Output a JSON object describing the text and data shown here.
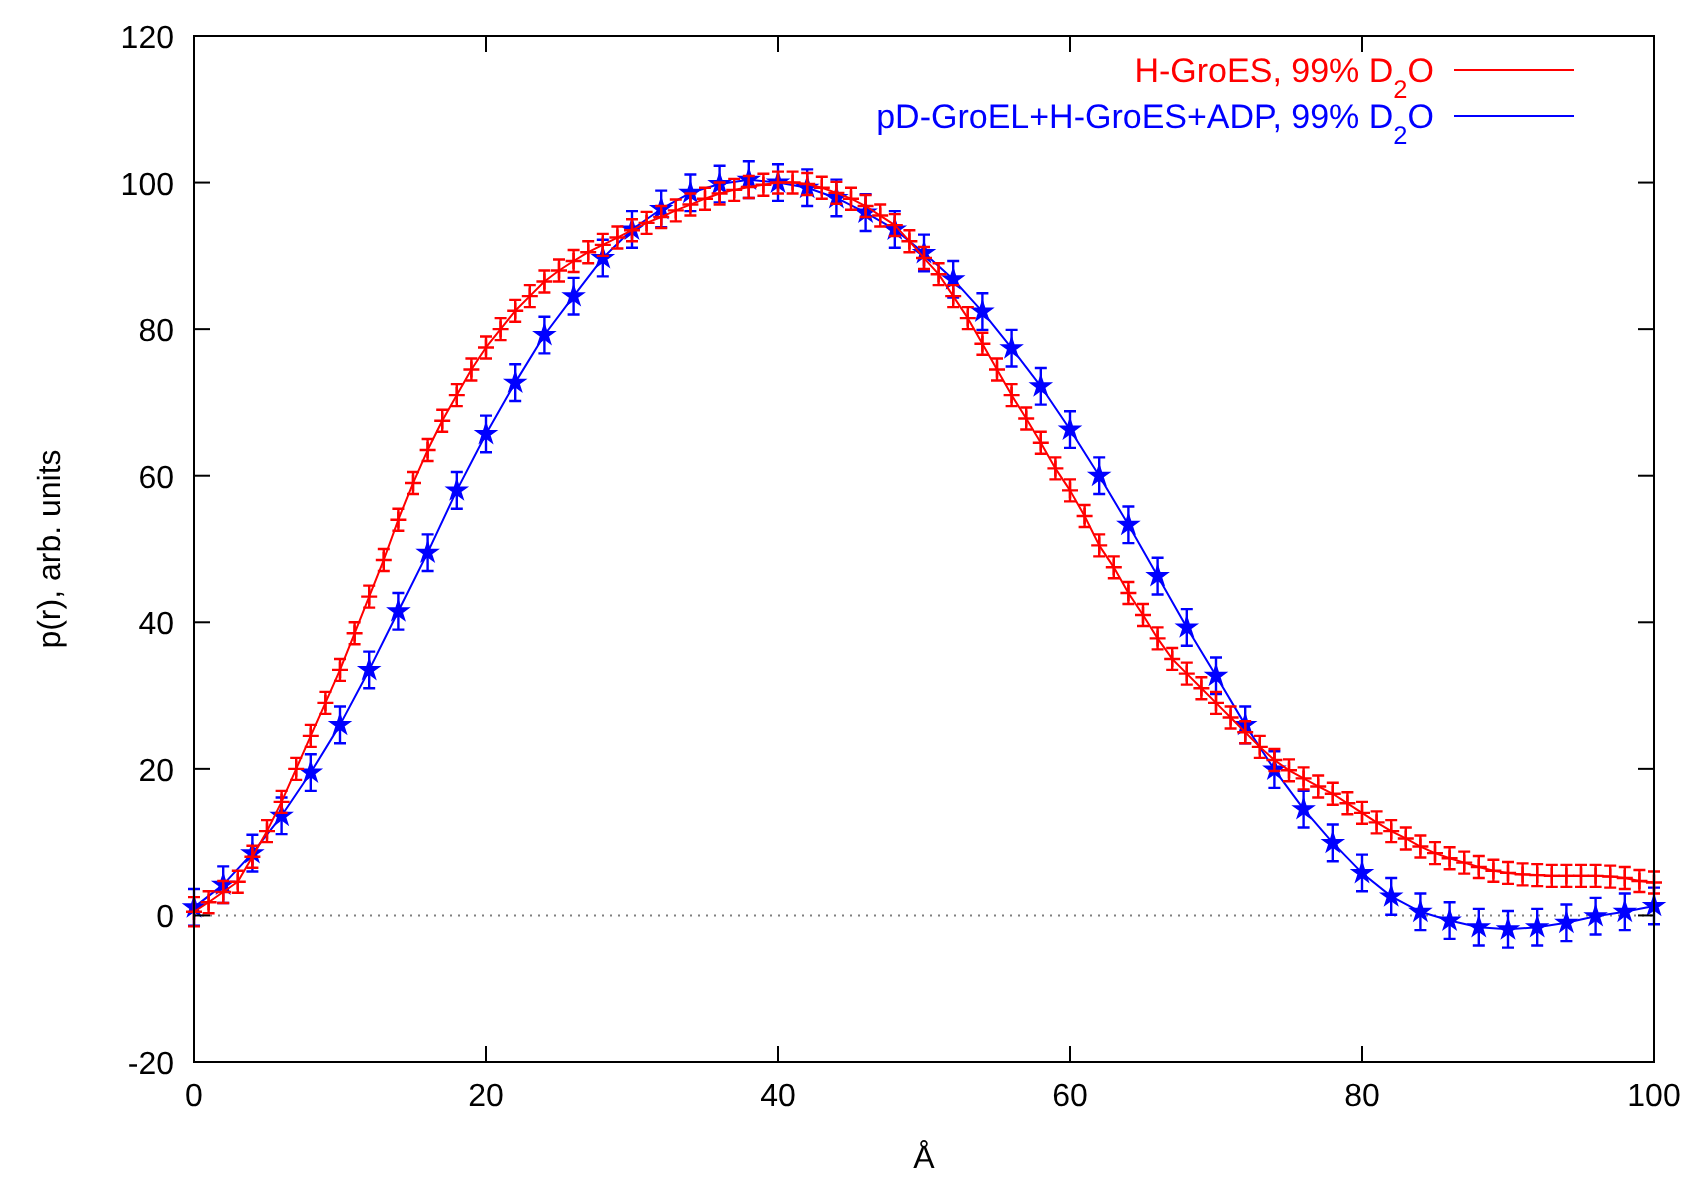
{
  "chart_data": {
    "type": "line",
    "xlabel": "Å",
    "ylabel": "p(r), arb. units",
    "xlim": [
      0,
      100
    ],
    "xticks": [
      0,
      20,
      40,
      60,
      80,
      100
    ],
    "ylim": [
      -20,
      120
    ],
    "yticks": [
      -20,
      0,
      20,
      40,
      60,
      80,
      100,
      120
    ],
    "grid": false,
    "legend": "top right",
    "line_style": "solid",
    "ref_lines": [
      {
        "axis": "y",
        "value": 0,
        "color": "#808080",
        "line_style": "dotted"
      }
    ],
    "series": [
      {
        "name": "H-GroES, 99% D$_{2}$O",
        "color": "#ff0000",
        "marker": "cross",
        "x": [
          0,
          1,
          2,
          3,
          4,
          5,
          6,
          7,
          8,
          9,
          10,
          11,
          12,
          13,
          14,
          15,
          16,
          17,
          18,
          19,
          20,
          21,
          22,
          23,
          24,
          25,
          26,
          27,
          28,
          29,
          30,
          31,
          32,
          33,
          34,
          35,
          36,
          37,
          38,
          39,
          40,
          41,
          42,
          43,
          44,
          45,
          46,
          47,
          48,
          49,
          50,
          51,
          52,
          53,
          54,
          55,
          56,
          57,
          58,
          59,
          60,
          61,
          62,
          63,
          64,
          65,
          66,
          67,
          68,
          69,
          70,
          71,
          72,
          73,
          74,
          75,
          76,
          77,
          78,
          79,
          80,
          81,
          82,
          83,
          84,
          85,
          86,
          87,
          88,
          89,
          90,
          91,
          92,
          93,
          94,
          95,
          96,
          97,
          98,
          99,
          100
        ],
        "values": [
          0.5,
          1.8,
          3.2,
          4.6,
          8,
          11.5,
          15.5,
          20,
          24.5,
          29,
          33.5,
          38.5,
          43.5,
          48.5,
          54,
          59,
          63.5,
          67.5,
          71,
          74.5,
          77.5,
          80,
          82.5,
          84.5,
          86.5,
          88,
          89.3,
          90.5,
          91.5,
          92.5,
          93.5,
          94.5,
          95.3,
          96.2,
          97,
          97.8,
          98.5,
          99,
          99.4,
          99.7,
          100,
          100,
          99.8,
          99.3,
          98.6,
          97.8,
          96.8,
          95.5,
          94.2,
          92,
          89.7,
          87.5,
          84.5,
          81.5,
          78,
          74.5,
          71,
          67.8,
          64.5,
          61,
          58,
          54.5,
          50.5,
          47.5,
          44,
          41,
          37.8,
          35,
          33,
          31,
          29,
          27,
          25,
          23,
          21.2,
          19.8,
          18.7,
          17.6,
          16.6,
          15.3,
          14,
          12.7,
          11.5,
          10.5,
          9.4,
          8.5,
          7.8,
          7.2,
          6.6,
          6.1,
          5.8,
          5.6,
          5.5,
          5.4,
          5.4,
          5.4,
          5.4,
          5.3,
          5.1,
          4.7,
          4.5
        ],
        "errors": [
          2,
          1.5,
          1.5,
          1.5,
          1.5,
          1.5,
          1.5,
          1.5,
          1.5,
          1.5,
          1.5,
          1.5,
          1.5,
          1.5,
          1.5,
          1.5,
          1.5,
          1.5,
          1.5,
          1.5,
          1.5,
          1.5,
          1.5,
          1.5,
          1.5,
          1.5,
          1.5,
          1.5,
          1.5,
          1.5,
          1.5,
          1.5,
          1.5,
          1.5,
          1.5,
          1.5,
          1.5,
          1.5,
          1.5,
          1.5,
          1.5,
          1.5,
          1.5,
          1.5,
          1.5,
          1.5,
          1.5,
          1.5,
          1.5,
          1.5,
          1.5,
          1.5,
          1.5,
          1.5,
          1.5,
          1.5,
          1.5,
          1.5,
          1.5,
          1.5,
          1.5,
          1.5,
          1.5,
          1.5,
          1.5,
          1.5,
          1.5,
          1.5,
          1.5,
          1.5,
          1.5,
          1.5,
          1.5,
          1.5,
          1.5,
          1.5,
          1.5,
          1.5,
          1.5,
          1.5,
          1.5,
          1.5,
          1.5,
          1.5,
          1.5,
          1.5,
          1.5,
          1.5,
          1.5,
          1.5,
          1.5,
          1.5,
          1.5,
          1.5,
          1.5,
          1.5,
          1.5,
          1.5,
          1.5,
          1.5,
          1.5
        ]
      },
      {
        "name": "pD-GroEL+H-GroES+ADP, 99% D$_{2}$O",
        "color": "#0000ff",
        "marker": "star",
        "x": [
          0,
          2,
          4,
          6,
          8,
          10,
          12,
          14,
          16,
          18,
          20,
          22,
          24,
          26,
          28,
          30,
          32,
          34,
          36,
          38,
          40,
          42,
          44,
          46,
          48,
          50,
          52,
          54,
          56,
          58,
          60,
          62,
          64,
          66,
          68,
          70,
          72,
          74,
          76,
          78,
          80,
          82,
          84,
          86,
          88,
          90,
          92,
          94,
          96,
          98,
          100
        ],
        "values": [
          1.1,
          4.2,
          8.5,
          13.6,
          19.5,
          26,
          33.5,
          41.5,
          49.5,
          58,
          65.7,
          72.7,
          79.2,
          84.5,
          89.7,
          93.6,
          96.4,
          98.6,
          99.8,
          100.4,
          100,
          99.3,
          97.9,
          95.9,
          93.6,
          90.4,
          86.8,
          82.4,
          77.4,
          72.2,
          66.3,
          60,
          53.3,
          46.3,
          39.3,
          32.7,
          26,
          19.9,
          14.5,
          9.9,
          5.8,
          2.6,
          0.5,
          -0.7,
          -1.6,
          -1.9,
          -1.6,
          -1,
          -0.1,
          0.5,
          1.3
        ],
        "errors": [
          2.5,
          2.5,
          2.5,
          2.5,
          2.5,
          2.5,
          2.5,
          2.5,
          2.5,
          2.5,
          2.5,
          2.5,
          2.5,
          2.5,
          2.5,
          2.5,
          2.5,
          2.5,
          2.5,
          2.5,
          2.5,
          2.5,
          2.5,
          2.5,
          2.5,
          2.5,
          2.5,
          2.5,
          2.5,
          2.5,
          2.5,
          2.5,
          2.5,
          2.5,
          2.5,
          2.5,
          2.5,
          2.5,
          2.5,
          2.5,
          2.5,
          2.5,
          2.5,
          2.5,
          2.5,
          2.5,
          2.5,
          2.5,
          2.5,
          2.5,
          2.5
        ]
      }
    ]
  }
}
